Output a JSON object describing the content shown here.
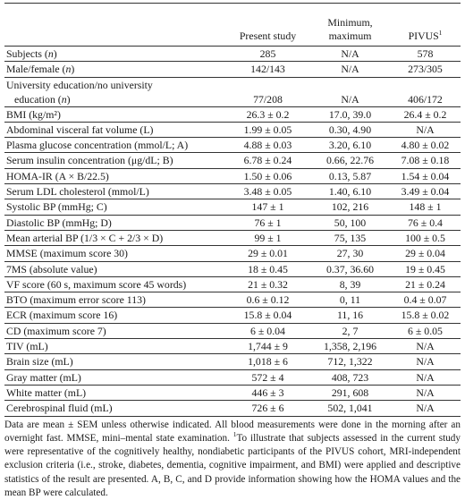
{
  "table": {
    "headers": {
      "label": "",
      "present": "Present study",
      "minmax_line1": "Minimum,",
      "minmax_line2": "maximum",
      "pivus": "PIVUS",
      "pivus_sup": "1"
    },
    "rows": [
      {
        "label": "Subjects (n)",
        "present": "285",
        "minmax": "N/A",
        "pivus": "578"
      },
      {
        "label": "Male/female (n)",
        "present": "142/143",
        "minmax": "N/A",
        "pivus": "273/305"
      },
      {
        "label_line1": "University education/no university",
        "label_line2": "education (n)",
        "present": "77/208",
        "minmax": "N/A",
        "pivus": "406/172"
      },
      {
        "label": "BMI (kg/m²)",
        "present": "26.3 ± 0.2",
        "minmax": "17.0, 39.0",
        "pivus": "26.4 ± 0.2"
      },
      {
        "label": "Abdominal visceral fat volume (L)",
        "present": "1.99 ± 0.05",
        "minmax": "0.30, 4.90",
        "pivus": "N/A"
      },
      {
        "label": "Plasma glucose concentration (mmol/L; A)",
        "present": "4.88 ± 0.03",
        "minmax": "3.20, 6.10",
        "pivus": "4.80 ± 0.02"
      },
      {
        "label": "Serum insulin concentration (μg/dL; B)",
        "present": "6.78 ± 0.24",
        "minmax": "0.66, 22.76",
        "pivus": "7.08 ± 0.18"
      },
      {
        "label": "HOMA-IR (A × B/22.5)",
        "present": "1.50 ± 0.06",
        "minmax": "0.13, 5.87",
        "pivus": "1.54 ± 0.04"
      },
      {
        "label": "Serum LDL cholesterol (mmol/L)",
        "present": "3.48 ± 0.05",
        "minmax": "1.40, 6.10",
        "pivus": "3.49 ± 0.04"
      },
      {
        "label": "Systolic BP (mmHg; C)",
        "present": "147 ± 1",
        "minmax": "102, 216",
        "pivus": "148 ± 1"
      },
      {
        "label": "Diastolic BP (mmHg; D)",
        "present": "76 ± 1",
        "minmax": "50, 100",
        "pivus": "76 ± 0.4"
      },
      {
        "label": "Mean arterial BP (1/3 × C + 2/3 × D)",
        "present": "99 ± 1",
        "minmax": "75, 135",
        "pivus": "100 ± 0.5"
      },
      {
        "label": "MMSE (maximum score 30)",
        "present": "29 ± 0.01",
        "minmax": "27, 30",
        "pivus": "29 ± 0.04"
      },
      {
        "label": "7MS (absolute value)",
        "present": "18 ± 0.45",
        "minmax": "0.37, 36.60",
        "pivus": "19 ± 0.45"
      },
      {
        "label": "VF score (60 s, maximum score 45 words)",
        "present": "21 ± 0.32",
        "minmax": "8, 39",
        "pivus": "21 ± 0.24"
      },
      {
        "label": "BTO (maximum error score 113)",
        "present": "0.6 ± 0.12",
        "minmax": "0, 11",
        "pivus": "0.4 ± 0.07"
      },
      {
        "label": "ECR (maximum score 16)",
        "present": "15.8 ± 0.04",
        "minmax": "11, 16",
        "pivus": "15.8 ± 0.02"
      },
      {
        "label": "CD (maximum score 7)",
        "present": "6 ± 0.04",
        "minmax": "2, 7",
        "pivus": "6 ± 0.05"
      },
      {
        "label": "TIV (mL)",
        "present": "1,744 ± 9",
        "minmax": "1,358, 2,196",
        "pivus": "N/A"
      },
      {
        "label": "Brain size (mL)",
        "present": "1,018 ± 6",
        "minmax": "712, 1,322",
        "pivus": "N/A"
      },
      {
        "label": "Gray matter (mL)",
        "present": "572 ± 4",
        "minmax": "408, 723",
        "pivus": "N/A"
      },
      {
        "label": "White matter (mL)",
        "present": "446 ± 3",
        "minmax": "291, 608",
        "pivus": "N/A"
      },
      {
        "label": "Cerebrospinal fluid (mL)",
        "present": "726 ± 6",
        "minmax": "502, 1,041",
        "pivus": "N/A"
      }
    ]
  },
  "footnote": {
    "text_a": "Data are mean ± SEM unless otherwise indicated. All blood measurements were done in the morning after an overnight fast. MMSE, mini–mental state examination. ",
    "sup": "1",
    "text_b": "To illustrate that subjects assessed in the current study were representative of the cognitively healthy, nondiabetic participants of the PIVUS cohort, MRI-independent exclusion criteria (i.e., stroke, diabetes, dementia, cognitive impairment, and BMI) were applied and descriptive statistics of the result are presented. A, B, C, and D provide information showing how the HOMA values and the mean BP were calculated."
  }
}
